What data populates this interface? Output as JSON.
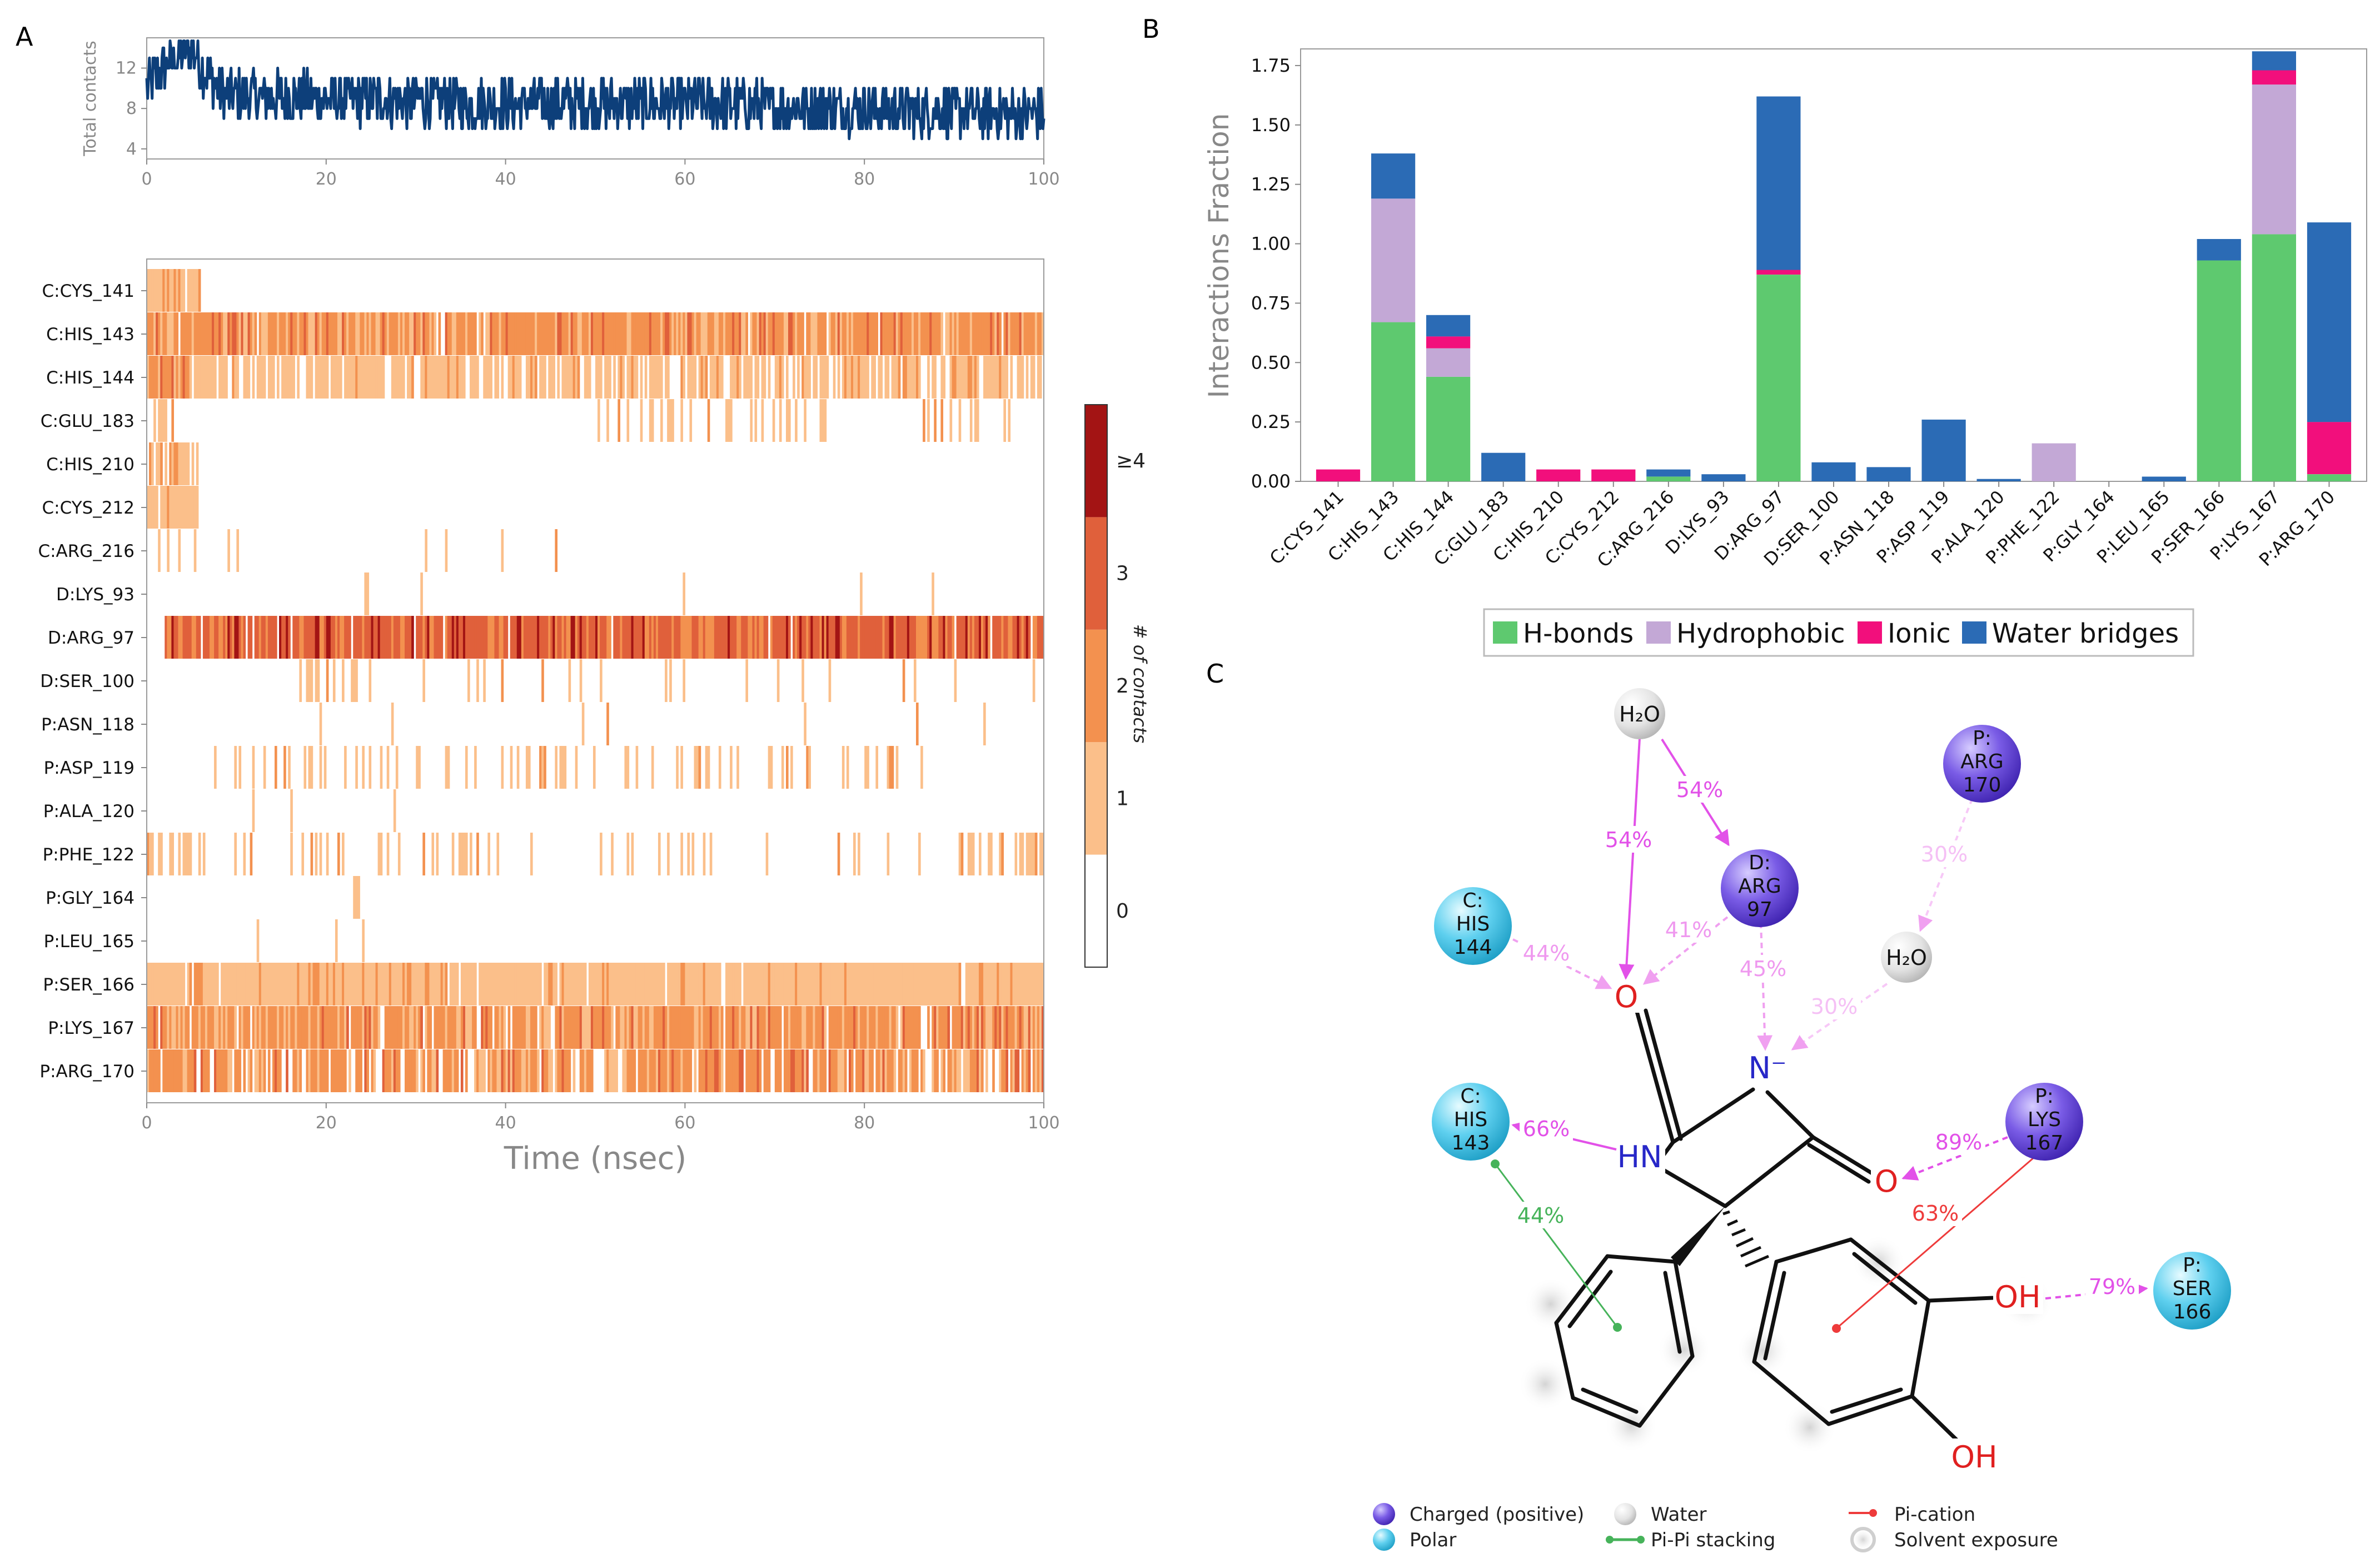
{
  "panels": {
    "a": "A",
    "b": "B",
    "c": "C"
  },
  "chart_data": [
    {
      "id": "total-contacts",
      "type": "line",
      "ylabel": "Total contacts",
      "xlim": [
        0,
        100
      ],
      "ylim": [
        3,
        15
      ],
      "yticks": [
        "4",
        "8",
        "12"
      ],
      "ytick_values": [
        4,
        8,
        12
      ],
      "xticks": [
        "0",
        "20",
        "40",
        "60",
        "80",
        "100"
      ],
      "xtick_values": [
        0,
        20,
        40,
        60,
        80,
        100
      ],
      "color": "#0d3f7a",
      "profile": {
        "x": [
          0,
          2,
          5,
          8,
          20,
          40,
          60,
          80,
          100
        ],
        "y": [
          10,
          12,
          14,
          9.5,
          9,
          8.5,
          8.5,
          8,
          7.5
        ]
      },
      "noise_amplitude": 2.6
    },
    {
      "id": "contacts-heatmap",
      "type": "heatmap",
      "xlabel": "Time (nsec)",
      "xlim": [
        0,
        100
      ],
      "xticks": [
        "0",
        "20",
        "40",
        "60",
        "80",
        "100"
      ],
      "xtick_values": [
        0,
        20,
        40,
        60,
        80,
        100
      ],
      "colorbar_label": "# of contacts",
      "colorbar_ticks": [
        "0",
        "1",
        "2",
        "3",
        "≥4"
      ],
      "colors": [
        "#ffffff",
        "#fbbf8a",
        "#f3914f",
        "#e0603b",
        "#a31414"
      ],
      "rows": [
        {
          "label": "C:CYS_141",
          "segments": [
            {
              "from": 0,
              "to": 6,
              "density": 0.85,
              "level": 1
            }
          ]
        },
        {
          "label": "C:HIS_143",
          "segments": [
            {
              "from": 0,
              "to": 100,
              "density": 0.95,
              "level": 2
            }
          ]
        },
        {
          "label": "C:HIS_144",
          "segments": [
            {
              "from": 0,
              "to": 5,
              "density": 0.95,
              "level": 2
            },
            {
              "from": 5,
              "to": 100,
              "density": 0.75,
              "level": 1
            }
          ]
        },
        {
          "label": "C:GLU_183",
          "segments": [
            {
              "from": 0,
              "to": 3,
              "density": 0.5,
              "level": 1
            },
            {
              "from": 50,
              "to": 76,
              "density": 0.3,
              "level": 1
            },
            {
              "from": 86,
              "to": 97,
              "density": 0.15,
              "level": 1
            }
          ]
        },
        {
          "label": "C:HIS_210",
          "segments": [
            {
              "from": 0,
              "to": 6,
              "density": 0.8,
              "level": 1
            }
          ]
        },
        {
          "label": "C:CYS_212",
          "segments": [
            {
              "from": 0,
              "to": 6,
              "density": 0.8,
              "level": 1
            }
          ]
        },
        {
          "label": "C:ARG_216",
          "segments": [
            {
              "from": 0,
              "to": 47,
              "density": 0.05,
              "level": 1
            }
          ]
        },
        {
          "label": "D:LYS_93",
          "segments": [
            {
              "from": 20,
              "to": 100,
              "density": 0.03,
              "level": 1
            }
          ]
        },
        {
          "label": "D:ARG_97",
          "segments": [
            {
              "from": 2,
              "to": 100,
              "density": 0.97,
              "level": 3
            }
          ]
        },
        {
          "label": "D:SER_100",
          "segments": [
            {
              "from": 17,
              "to": 25,
              "density": 0.35,
              "level": 1
            },
            {
              "from": 25,
              "to": 100,
              "density": 0.06,
              "level": 1
            }
          ]
        },
        {
          "label": "P:ASN_118",
          "segments": [
            {
              "from": 10,
              "to": 100,
              "density": 0.02,
              "level": 1
            }
          ]
        },
        {
          "label": "P:ASP_119",
          "segments": [
            {
              "from": 5,
              "to": 90,
              "density": 0.2,
              "level": 1
            }
          ]
        },
        {
          "label": "P:ALA_120",
          "segments": [
            {
              "from": 10,
              "to": 40,
              "density": 0.02,
              "level": 1
            }
          ]
        },
        {
          "label": "P:PHE_122",
          "segments": [
            {
              "from": 0,
              "to": 6,
              "density": 0.6,
              "level": 1
            },
            {
              "from": 6,
              "to": 90,
              "density": 0.12,
              "level": 1
            },
            {
              "from": 90,
              "to": 100,
              "density": 0.55,
              "level": 1
            }
          ]
        },
        {
          "label": "P:GLY_164",
          "segments": [
            {
              "from": 23,
              "to": 24,
              "density": 0.4,
              "level": 1
            }
          ]
        },
        {
          "label": "P:LEU_165",
          "segments": [
            {
              "from": 0,
              "to": 27,
              "density": 0.02,
              "level": 1
            }
          ]
        },
        {
          "label": "P:SER_166",
          "segments": [
            {
              "from": 0,
              "to": 100,
              "density": 0.95,
              "level": 1
            }
          ]
        },
        {
          "label": "P:LYS_167",
          "segments": [
            {
              "from": 0,
              "to": 100,
              "density": 0.93,
              "level": 2
            }
          ]
        },
        {
          "label": "P:ARG_170",
          "segments": [
            {
              "from": 0,
              "to": 100,
              "density": 0.8,
              "level": 2
            }
          ]
        }
      ]
    },
    {
      "id": "interactions-fraction",
      "type": "bar",
      "stacked": true,
      "ylabel": "Interactions Fraction",
      "ylim": [
        0,
        1.82
      ],
      "yticks": [
        "0.00",
        "0.25",
        "0.50",
        "0.75",
        "1.00",
        "1.25",
        "1.50",
        "1.75"
      ],
      "ytick_values": [
        0,
        0.25,
        0.5,
        0.75,
        1.0,
        1.25,
        1.5,
        1.75
      ],
      "categories": [
        "C:CYS_141",
        "C:HIS_143",
        "C:HIS_144",
        "C:GLU_183",
        "C:HIS_210",
        "C:CYS_212",
        "C:ARG_216",
        "D:LYS_93",
        "D:ARG_97",
        "D:SER_100",
        "P:ASN_118",
        "P:ASP_119",
        "P:ALA_120",
        "P:PHE_122",
        "P:GLY_164",
        "P:LEU_165",
        "P:SER_166",
        "P:LYS_167",
        "P:ARG_170"
      ],
      "series": [
        {
          "name": "H-bonds",
          "color": "#5ec96f",
          "values": [
            0,
            0.67,
            0.44,
            0,
            0,
            0,
            0.02,
            0,
            0.87,
            0,
            0,
            0,
            0,
            0,
            0,
            0,
            0.93,
            1.04,
            0.03
          ]
        },
        {
          "name": "Hydrophobic",
          "color": "#c3a8d6",
          "values": [
            0,
            0.52,
            0.12,
            0,
            0,
            0,
            0,
            0,
            0,
            0,
            0,
            0,
            0,
            0.16,
            0,
            0,
            0,
            0.63,
            0
          ]
        },
        {
          "name": "Ionic",
          "color": "#f20f7c",
          "values": [
            0.05,
            0,
            0.05,
            0,
            0.05,
            0.05,
            0,
            0,
            0.02,
            0,
            0,
            0,
            0,
            0,
            0,
            0,
            0,
            0.06,
            0.22
          ]
        },
        {
          "name": "Water bridges",
          "color": "#2b6bb5",
          "values": [
            0,
            0.19,
            0.09,
            0.12,
            0,
            0,
            0.03,
            0.03,
            0.73,
            0.08,
            0.06,
            0.26,
            0.01,
            0,
            0,
            0.02,
            0.09,
            0.08,
            0.84
          ]
        }
      ]
    }
  ],
  "diagram": {
    "residues": [
      {
        "id": "h2o-top",
        "kind": "water",
        "lines": [
          "H₂O"
        ]
      },
      {
        "id": "arg170",
        "kind": "charged",
        "lines": [
          "P:",
          "ARG",
          "170"
        ]
      },
      {
        "id": "arg97",
        "kind": "charged",
        "lines": [
          "D:",
          "ARG",
          "97"
        ]
      },
      {
        "id": "his144",
        "kind": "polar",
        "lines": [
          "C:",
          "HIS",
          "144"
        ]
      },
      {
        "id": "h2o-right",
        "kind": "water",
        "lines": [
          "H₂O"
        ]
      },
      {
        "id": "his143",
        "kind": "polar",
        "lines": [
          "C:",
          "HIS",
          "143"
        ]
      },
      {
        "id": "lys167",
        "kind": "charged",
        "lines": [
          "P:",
          "LYS",
          "167"
        ]
      },
      {
        "id": "ser166",
        "kind": "polar",
        "lines": [
          "P:",
          "SER",
          "166"
        ]
      }
    ],
    "atoms": {
      "o_top": "O",
      "n_minus": "N⁻",
      "nh": "HN",
      "o_right": "O",
      "oh1": "OH",
      "oh2": "OH"
    },
    "percentages": [
      "54%",
      "54%",
      "41%",
      "45%",
      "30%",
      "30%",
      "44%",
      "66%",
      "44%",
      "89%",
      "63%",
      "79%"
    ],
    "legend": [
      "Charged (positive)",
      "Polar",
      "Water",
      "Pi-Pi stacking",
      "Pi-cation",
      "Solvent exposure"
    ],
    "colors": {
      "charged": "#7a5ce6",
      "polar": "#5fd0ef",
      "water": "#d9d9d9",
      "hbond": "#e251e8",
      "pipi": "#46b35a",
      "pication": "#ee3b3b"
    }
  }
}
